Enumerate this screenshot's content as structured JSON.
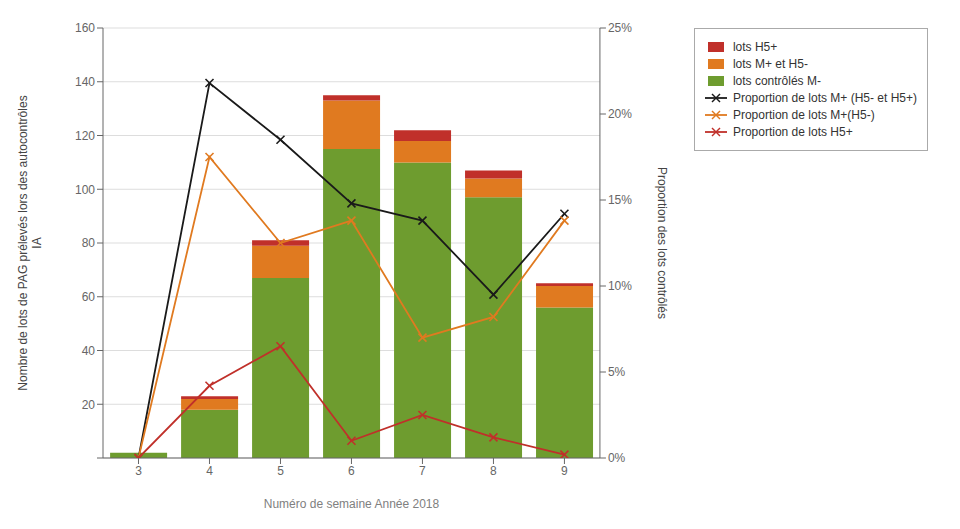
{
  "chart_data": {
    "type": "bar",
    "stacked": true,
    "xlabel": "Numéro de semaine Année 2018",
    "ylabel": "Nombre de lots de PAG prélevés lors des autocontrôles\nIA",
    "y2label": "Proportion des lots contrôlés",
    "categories": [
      "3",
      "4",
      "5",
      "6",
      "7",
      "8",
      "9"
    ],
    "series": [
      {
        "name": "lots contrôlés M-",
        "type": "bar",
        "color": "#6e9c2f",
        "values": [
          2,
          18,
          67,
          115,
          110,
          97,
          56
        ]
      },
      {
        "name": "lots M+ et H5-",
        "type": "bar",
        "color": "#e07a20",
        "values": [
          0,
          4,
          12,
          18,
          8,
          7,
          8
        ]
      },
      {
        "name": "lots H5+",
        "type": "bar",
        "color": "#c0302a",
        "values": [
          0,
          1,
          2,
          2,
          4,
          3,
          1
        ]
      },
      {
        "name": "Proportion de lots M+ (H5- et H5+)",
        "type": "line",
        "axis": "y2",
        "color": "#1a1a1a",
        "marker": "x",
        "values": [
          0.0,
          0.218,
          0.185,
          0.148,
          0.138,
          0.095,
          0.142
        ]
      },
      {
        "name": "Proportion de lots M+(H5-)",
        "type": "line",
        "axis": "y2",
        "color": "#e07a20",
        "marker": "x",
        "values": [
          0.0,
          0.175,
          0.125,
          0.138,
          0.07,
          0.082,
          0.138
        ]
      },
      {
        "name": "Proportion de lots H5+",
        "type": "line",
        "axis": "y2",
        "color": "#c0302a",
        "marker": "x",
        "values": [
          0.0,
          0.042,
          0.065,
          0.01,
          0.025,
          0.012,
          0.002
        ]
      }
    ],
    "ylim": [
      0,
      160
    ],
    "yticks": [
      0,
      20,
      40,
      60,
      80,
      100,
      120,
      140,
      160
    ],
    "y2lim": [
      0,
      0.25
    ],
    "y2ticks": [
      {
        "value": 0,
        "label": "0%"
      },
      {
        "value": 0.05,
        "label": "5%"
      },
      {
        "value": 0.1,
        "label": "10%"
      },
      {
        "value": 0.15,
        "label": "15%"
      },
      {
        "value": 0.2,
        "label": "20%"
      },
      {
        "value": 0.25,
        "label": "25%"
      }
    ],
    "grid": true,
    "legend": "right"
  }
}
